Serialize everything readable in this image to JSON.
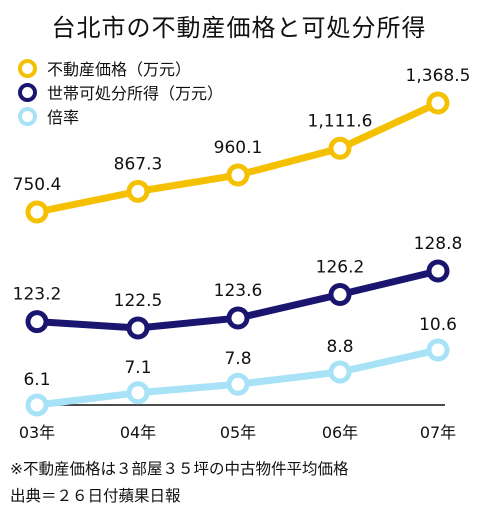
{
  "chart_data": {
    "type": "line",
    "title": "台北市の不動産価格と可処分所得",
    "categories": [
      "03年",
      "04年",
      "05年",
      "06年",
      "07年"
    ],
    "series": [
      {
        "name": "不動産価格（万元）",
        "color": "#F5C000",
        "values": [
          750.4,
          867.3,
          960.1,
          1111.6,
          1368.5
        ],
        "labels": [
          "750.4",
          "867.3",
          "960.1",
          "1,111.6",
          "1,368.5"
        ]
      },
      {
        "name": "世帯可処分所得（万元）",
        "color": "#1A1670",
        "values": [
          123.2,
          122.5,
          123.6,
          126.2,
          128.8
        ],
        "labels": [
          "123.2",
          "122.5",
          "123.6",
          "126.2",
          "128.8"
        ]
      },
      {
        "name": "倍率",
        "color": "#A8E2F7",
        "values": [
          6.1,
          7.1,
          7.8,
          8.8,
          10.6
        ],
        "labels": [
          "6.1",
          "7.1",
          "7.8",
          "8.8",
          "10.6"
        ]
      }
    ],
    "legend_position": "top-left",
    "grid": false,
    "notes": [
      "※不動産価格は３部屋３５坪の中古物件平均価格",
      "出典＝２６日付蘋果日報"
    ]
  }
}
